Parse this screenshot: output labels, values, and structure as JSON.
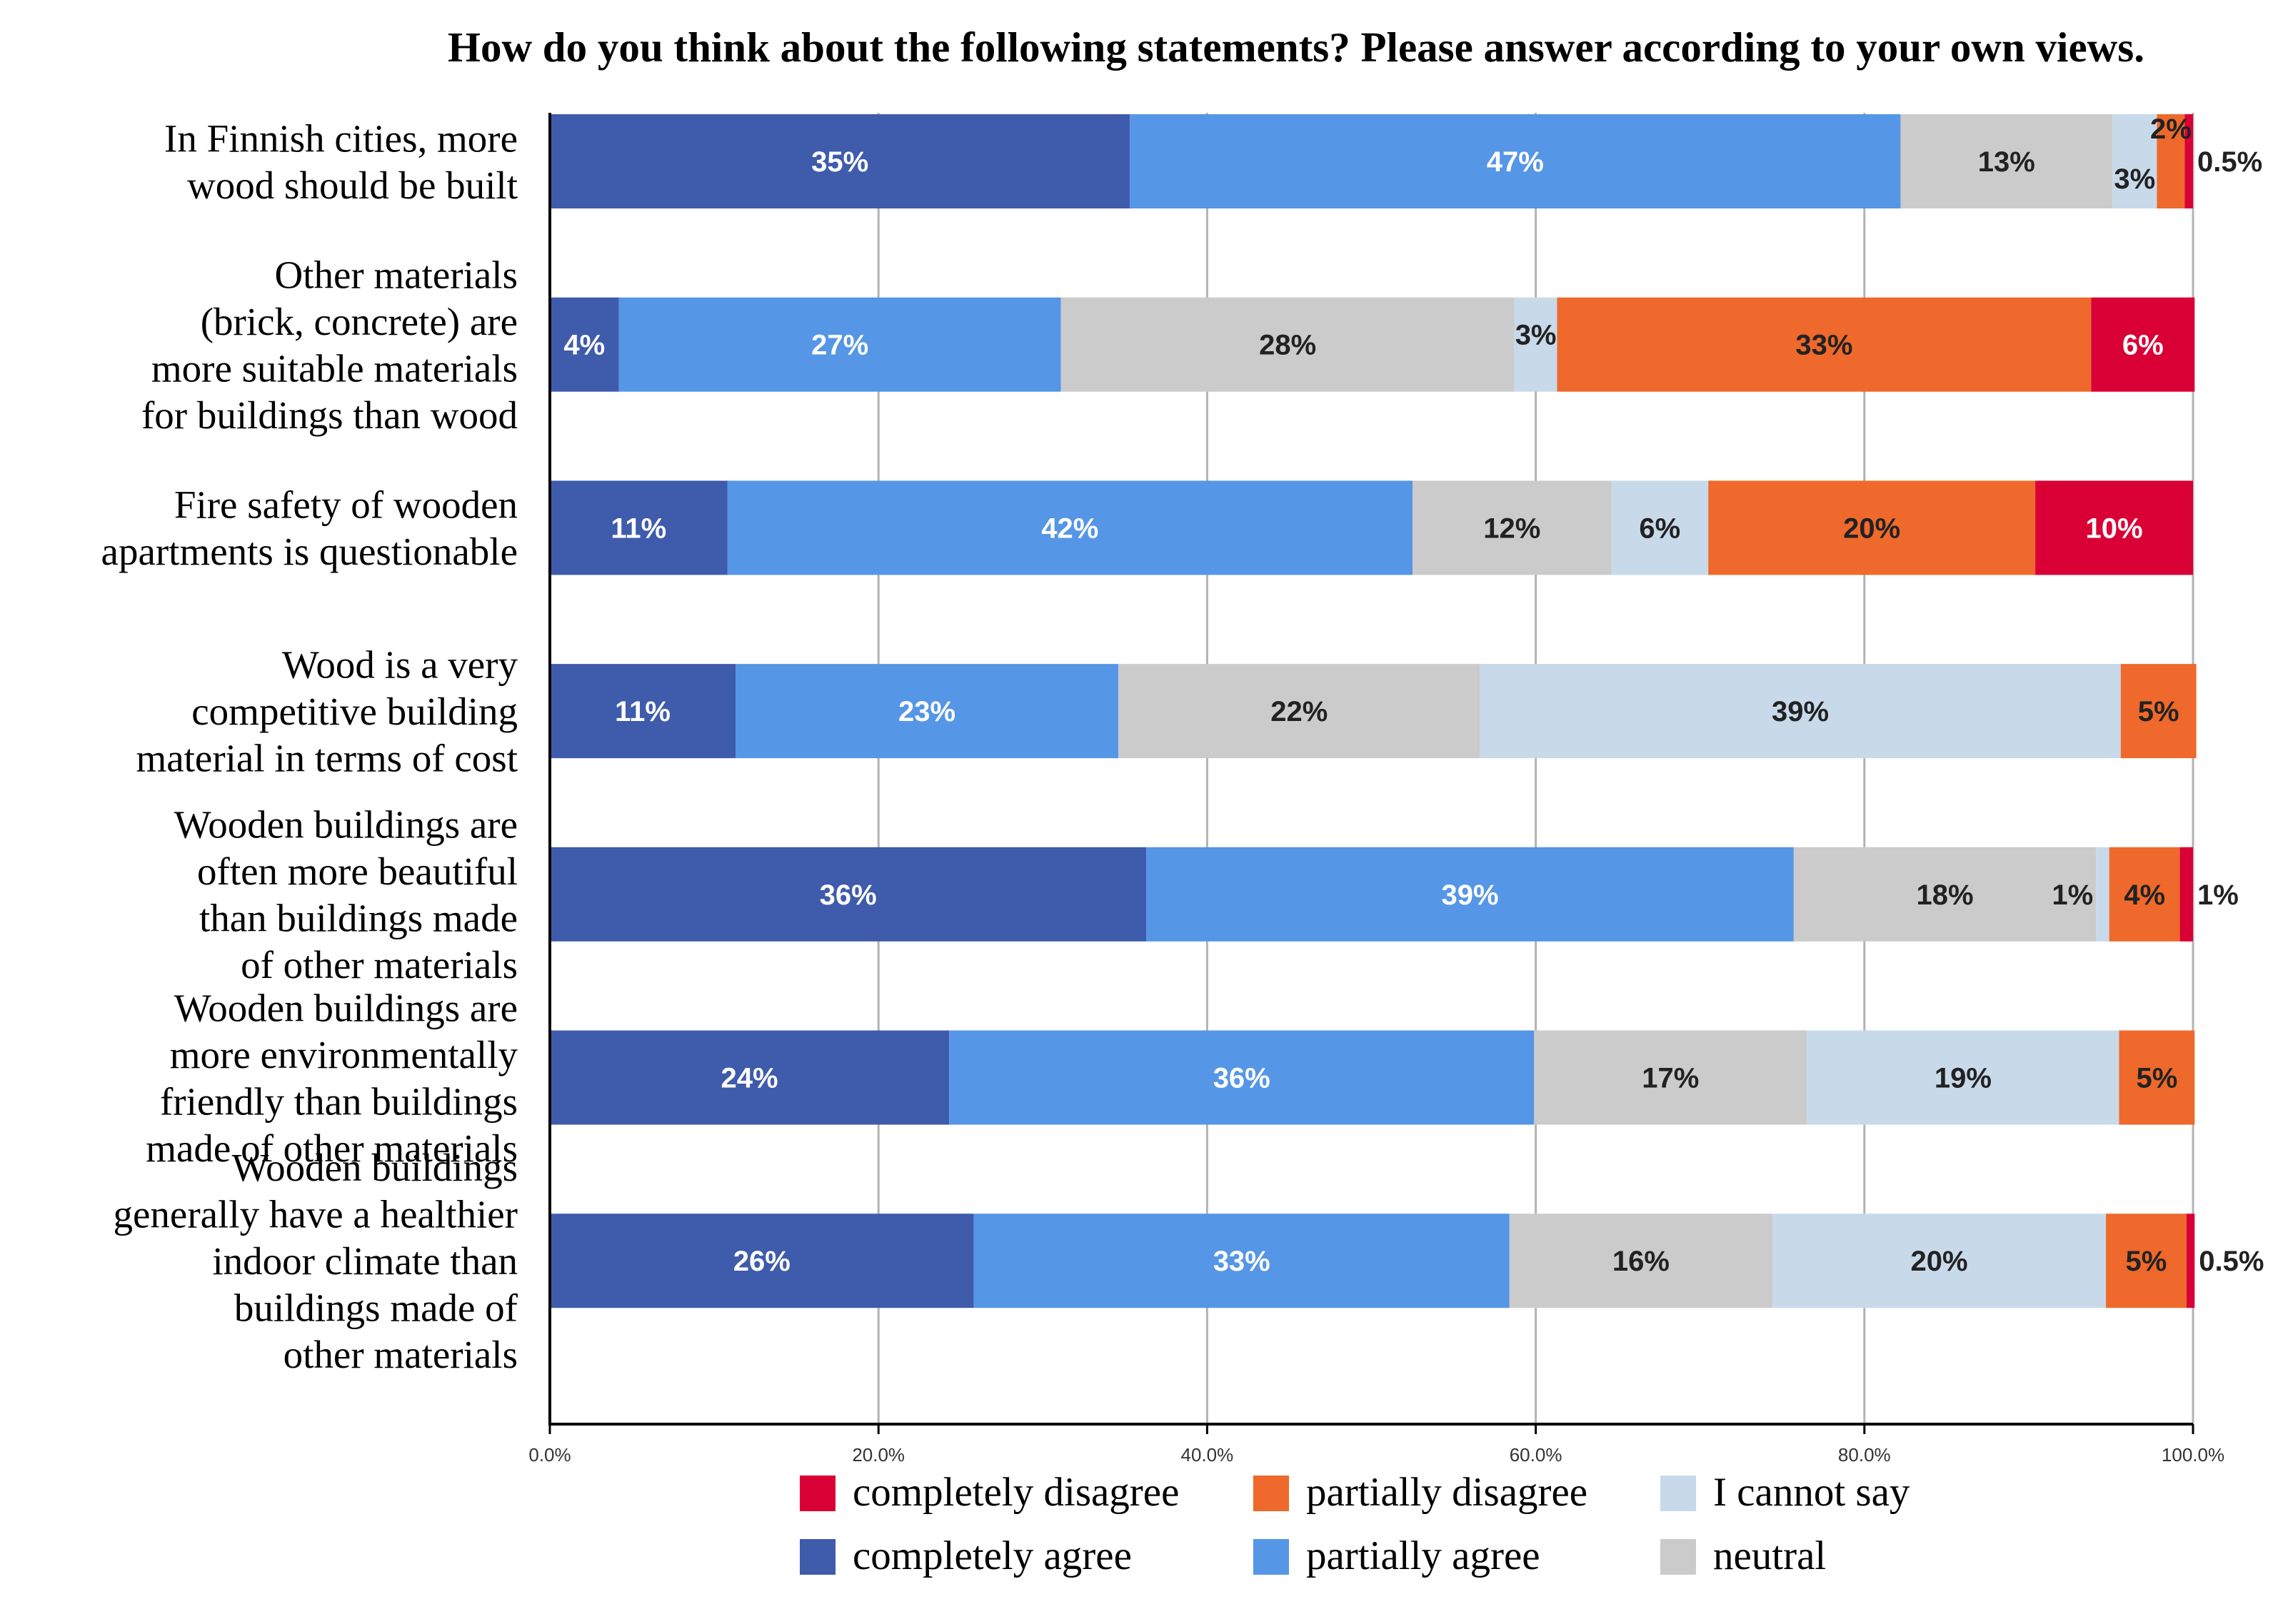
{
  "chart_data": {
    "type": "bar",
    "orientation": "horizontal",
    "stacked": true,
    "title": "How do you think about the following statements? Please answer according to your own views.",
    "xlabel": "",
    "ylabel": "",
    "xlim": [
      0,
      100
    ],
    "x_ticks": [
      "0.0%",
      "20.0%",
      "40.0%",
      "60.0%",
      "80.0%",
      "100.0%"
    ],
    "grid": true,
    "legend_position": "bottom",
    "categories": [
      [
        "In Finnish cities, more",
        "wood should be built"
      ],
      [
        "Other materials",
        "(brick, concrete) are",
        "more suitable materials",
        "for buildings than wood"
      ],
      [
        "Fire safety of wooden",
        "apartments is questionable"
      ],
      [
        "Wood is a very",
        "competitive building",
        "material in terms of cost"
      ],
      [
        "Wooden buildings are",
        "often more beautiful",
        "than buildings made",
        "of other materials"
      ],
      [
        "Wooden buildings are",
        "more environmentally",
        "friendly than buildings",
        "made of other materials"
      ],
      [
        "Wooden buildings ",
        "generally have a healthier",
        "indoor climate than",
        "buildings made of",
        "other materials"
      ]
    ],
    "series": [
      {
        "name": "completely agree",
        "color": "#3f5bab",
        "values": [
          35.3,
          4.2,
          10.8,
          11.3,
          36.3,
          24.3,
          25.8
        ],
        "labels": [
          "35%",
          "4%",
          "11%",
          "11%",
          "36%",
          "24%",
          "26%"
        ]
      },
      {
        "name": "partially agree",
        "color": "#5596e6",
        "values": [
          46.9,
          26.9,
          41.7,
          23.3,
          39.4,
          35.6,
          32.6
        ],
        "labels": [
          "47%",
          "27%",
          "42%",
          "23%",
          "39%",
          "36%",
          "33%"
        ]
      },
      {
        "name": "neutral",
        "color": "#cbcbcb",
        "values": [
          12.9,
          27.6,
          12.1,
          22.0,
          18.4,
          16.6,
          16.0
        ],
        "labels": [
          "13%",
          "28%",
          "12%",
          "22%",
          "18%",
          "17%",
          "16%"
        ]
      },
      {
        "name": "I cannot say",
        "color": "#c8d9ea",
        "values": [
          2.7,
          2.6,
          5.9,
          39.0,
          0.8,
          19.0,
          20.3
        ],
        "labels": [
          "3%",
          "3%",
          "6%",
          "39%",
          "1%",
          "19%",
          "20%"
        ]
      },
      {
        "name": "partially disagree",
        "color": "#ee692b",
        "values": [
          1.7,
          32.5,
          19.9,
          4.6,
          4.3,
          4.6,
          4.9
        ],
        "labels": [
          "2%",
          "33%",
          "20%",
          "5%",
          "4%",
          "5%",
          "5%"
        ]
      },
      {
        "name": "completely disagree",
        "color": "#d90036",
        "values": [
          0.5,
          6.3,
          9.6,
          0,
          0.8,
          0,
          0.5
        ],
        "labels": [
          "0.5%",
          "6%",
          "10%",
          "",
          "1%",
          "",
          "0.5%"
        ]
      }
    ],
    "legend": [
      [
        "completely disagree",
        "partially disagree",
        "I cannot say"
      ],
      [
        "completely agree",
        "partially agree",
        "neutral"
      ]
    ]
  }
}
